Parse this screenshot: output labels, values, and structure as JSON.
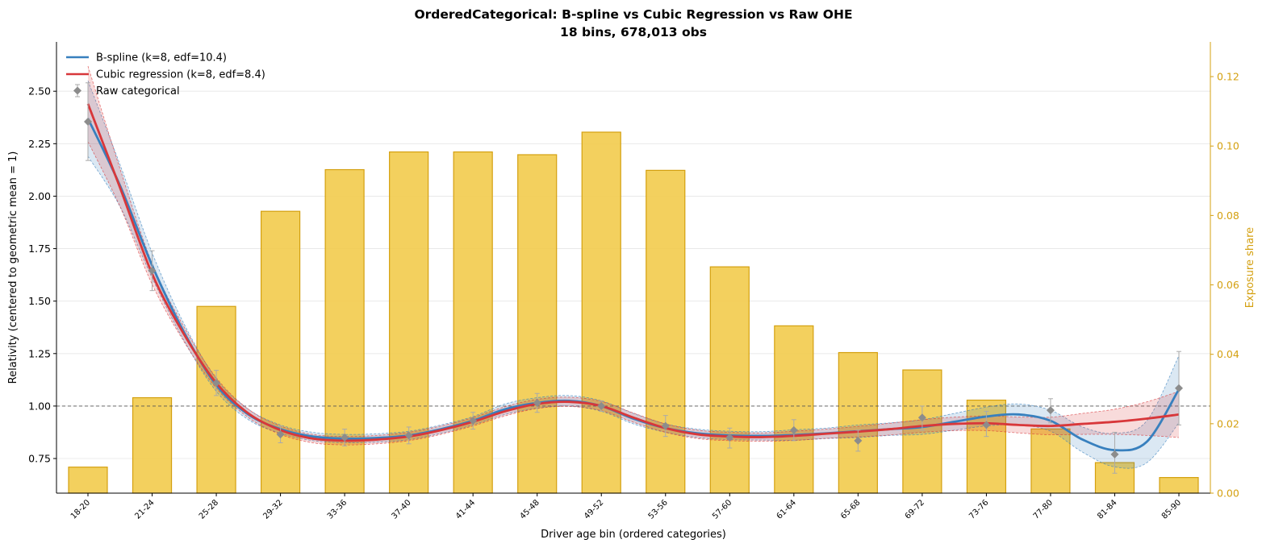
{
  "chart_data": {
    "type": "bar+line",
    "title_line1": "OrderedCategorical: B-spline vs Cubic Regression vs Raw OHE",
    "title_line2": "18 bins, 678,013 obs",
    "xlabel": "Driver age bin (ordered categories)",
    "ylabel_left": "Relativity (centered to geometric mean = 1)",
    "ylabel_right": "Exposure share",
    "ylim_left": [
      0.585,
      2.735
    ],
    "ylim_right": [
      0,
      0.13
    ],
    "yticks_left": [
      0.75,
      1.0,
      1.25,
      1.5,
      1.75,
      2.0,
      2.25,
      2.5
    ],
    "yticks_right": [
      0.0,
      0.02,
      0.04,
      0.06,
      0.08,
      0.1,
      0.12
    ],
    "reference_line": 1.0,
    "categories": [
      "18-20",
      "21-24",
      "25-28",
      "29-32",
      "33-36",
      "37-40",
      "41-44",
      "45-48",
      "49-52",
      "53-56",
      "57-60",
      "61-64",
      "65-68",
      "69-72",
      "73-76",
      "77-80",
      "81-84",
      "85-90"
    ],
    "exposure_share": [
      0.0075,
      0.0275,
      0.0538,
      0.0812,
      0.0932,
      0.0983,
      0.0983,
      0.0975,
      0.104,
      0.093,
      0.0652,
      0.0482,
      0.0405,
      0.0355,
      0.0268,
      0.0185,
      0.0088,
      0.0045
    ],
    "raw_categorical": {
      "name": "Raw categorical",
      "values": [
        2.355,
        1.645,
        1.11,
        0.865,
        0.85,
        0.86,
        0.93,
        1.015,
        1.0,
        0.905,
        0.85,
        0.885,
        0.835,
        0.945,
        0.91,
        0.98,
        0.77,
        1.085
      ],
      "lower": [
        2.17,
        1.55,
        1.05,
        0.825,
        0.81,
        0.82,
        0.89,
        0.97,
        0.975,
        0.855,
        0.8,
        0.835,
        0.785,
        0.885,
        0.855,
        0.92,
        0.68,
        0.91
      ],
      "upper": [
        2.54,
        1.74,
        1.17,
        0.905,
        0.89,
        0.9,
        0.97,
        1.06,
        1.025,
        0.955,
        0.895,
        0.935,
        0.885,
        1.0,
        0.975,
        1.035,
        0.875,
        1.26
      ]
    },
    "series": [
      {
        "name": "B-spline (k=8, edf=10.4)",
        "color": "#3880be",
        "x": [
          0,
          0.5,
          1,
          1.5,
          2,
          2.5,
          3,
          3.5,
          4,
          4.5,
          5,
          5.5,
          6,
          6.5,
          7,
          7.5,
          8,
          8.5,
          9,
          9.5,
          10,
          10.5,
          11,
          11.5,
          12,
          12.5,
          13,
          13.5,
          14,
          14.5,
          15,
          15.5,
          16,
          16.5,
          17
        ],
        "values": [
          2.37,
          2.05,
          1.67,
          1.35,
          1.1,
          0.96,
          0.89,
          0.855,
          0.845,
          0.848,
          0.86,
          0.89,
          0.93,
          0.985,
          1.015,
          1.025,
          1.0,
          0.94,
          0.895,
          0.87,
          0.86,
          0.858,
          0.862,
          0.87,
          0.88,
          0.89,
          0.9,
          0.925,
          0.95,
          0.96,
          0.93,
          0.84,
          0.79,
          0.83,
          1.08
        ],
        "ci_halfwidth": [
          0.18,
          0.1,
          0.06,
          0.04,
          0.03,
          0.025,
          0.02,
          0.02,
          0.02,
          0.02,
          0.02,
          0.02,
          0.02,
          0.025,
          0.025,
          0.025,
          0.025,
          0.025,
          0.02,
          0.02,
          0.02,
          0.02,
          0.025,
          0.025,
          0.03,
          0.03,
          0.035,
          0.04,
          0.045,
          0.05,
          0.05,
          0.06,
          0.08,
          0.1,
          0.16
        ]
      },
      {
        "name": "Cubic regression (k=8, edf=8.4)",
        "color": "#d8373a",
        "x": [
          0,
          0.5,
          1,
          1.5,
          2,
          2.5,
          3,
          3.5,
          4,
          4.5,
          5,
          5.5,
          6,
          6.5,
          7,
          7.5,
          8,
          8.5,
          9,
          9.5,
          10,
          10.5,
          11,
          11.5,
          12,
          12.5,
          13,
          13.5,
          14,
          14.5,
          15,
          15.5,
          16,
          16.5,
          17
        ],
        "values": [
          2.44,
          2.04,
          1.63,
          1.34,
          1.11,
          0.965,
          0.885,
          0.845,
          0.835,
          0.84,
          0.855,
          0.885,
          0.925,
          0.975,
          1.01,
          1.02,
          1.0,
          0.945,
          0.895,
          0.865,
          0.855,
          0.852,
          0.858,
          0.868,
          0.878,
          0.89,
          0.905,
          0.915,
          0.918,
          0.91,
          0.905,
          0.915,
          0.925,
          0.94,
          0.96
        ],
        "ci_halfwidth": [
          0.18,
          0.09,
          0.05,
          0.035,
          0.025,
          0.02,
          0.02,
          0.02,
          0.02,
          0.02,
          0.02,
          0.02,
          0.02,
          0.022,
          0.022,
          0.022,
          0.022,
          0.022,
          0.02,
          0.02,
          0.02,
          0.02,
          0.022,
          0.022,
          0.025,
          0.028,
          0.03,
          0.032,
          0.035,
          0.038,
          0.042,
          0.05,
          0.06,
          0.08,
          0.11
        ]
      }
    ],
    "legend": {
      "position": "top-left",
      "items": [
        "B-spline (k=8, edf=10.4)",
        "Cubic regression (k=8, edf=8.4)",
        "Raw categorical"
      ]
    },
    "colors": {
      "bar_fill": "#f2cb4c",
      "bar_edge": "#d4a010",
      "raw_marker": "#8c8c8c",
      "right_axis": "#d4a010"
    },
    "grid": "horizontal"
  }
}
